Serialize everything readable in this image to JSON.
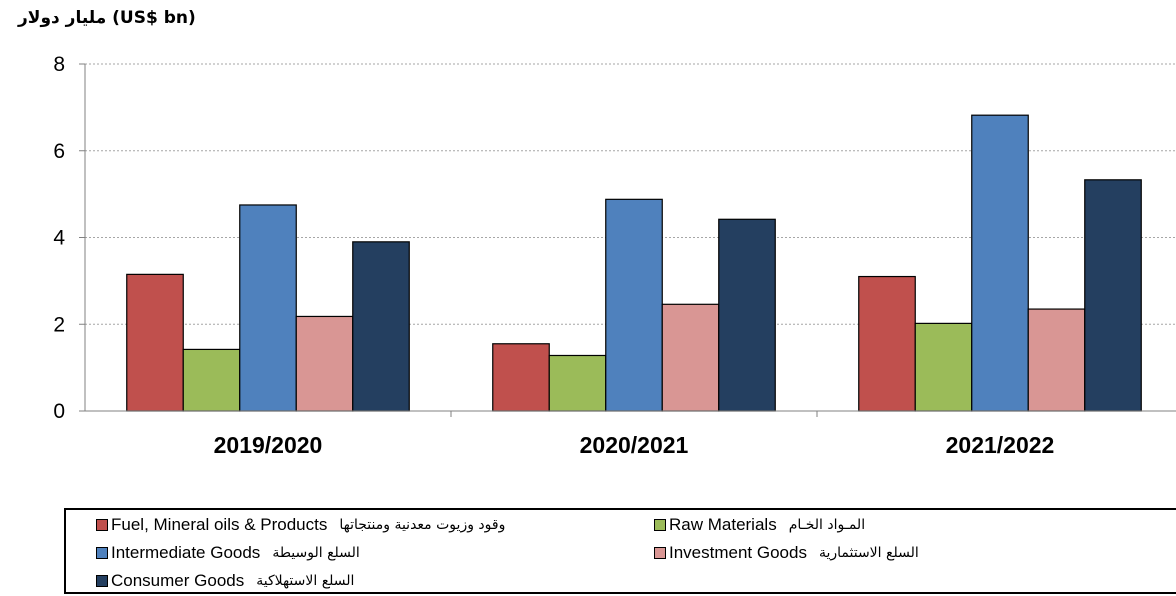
{
  "chart_data": {
    "type": "bar",
    "unit_label": "مليار دولار (US$ bn)",
    "categories": [
      "2019/2020",
      "2020/2021",
      "2021/2022"
    ],
    "ylim": [
      0,
      8
    ],
    "yticks": [
      0,
      2,
      4,
      6,
      8
    ],
    "grid": true,
    "legend_position": "bottom",
    "series": [
      {
        "name": "Fuel, Mineral oils & Products",
        "name_ar": "وقود وزيوت معدنية ومنتجاتها",
        "color": "#c0504d",
        "values": [
          3.15,
          1.55,
          3.1
        ]
      },
      {
        "name": "Raw Materials",
        "name_ar": "المـواد الخـام",
        "color": "#9bbb59",
        "values": [
          1.42,
          1.28,
          2.02
        ]
      },
      {
        "name": "Intermediate Goods",
        "name_ar": "السلع الوسيطة",
        "color": "#4f81bd",
        "values": [
          4.75,
          4.88,
          6.82
        ]
      },
      {
        "name": "Investment Goods",
        "name_ar": "السلع الاستثمارية",
        "color": "#d99694",
        "values": [
          2.18,
          2.46,
          2.35
        ]
      },
      {
        "name": "Consumer Goods",
        "name_ar": "السلع الاستهلاكية",
        "color": "#243f60",
        "values": [
          3.9,
          4.42,
          5.33
        ]
      }
    ]
  }
}
